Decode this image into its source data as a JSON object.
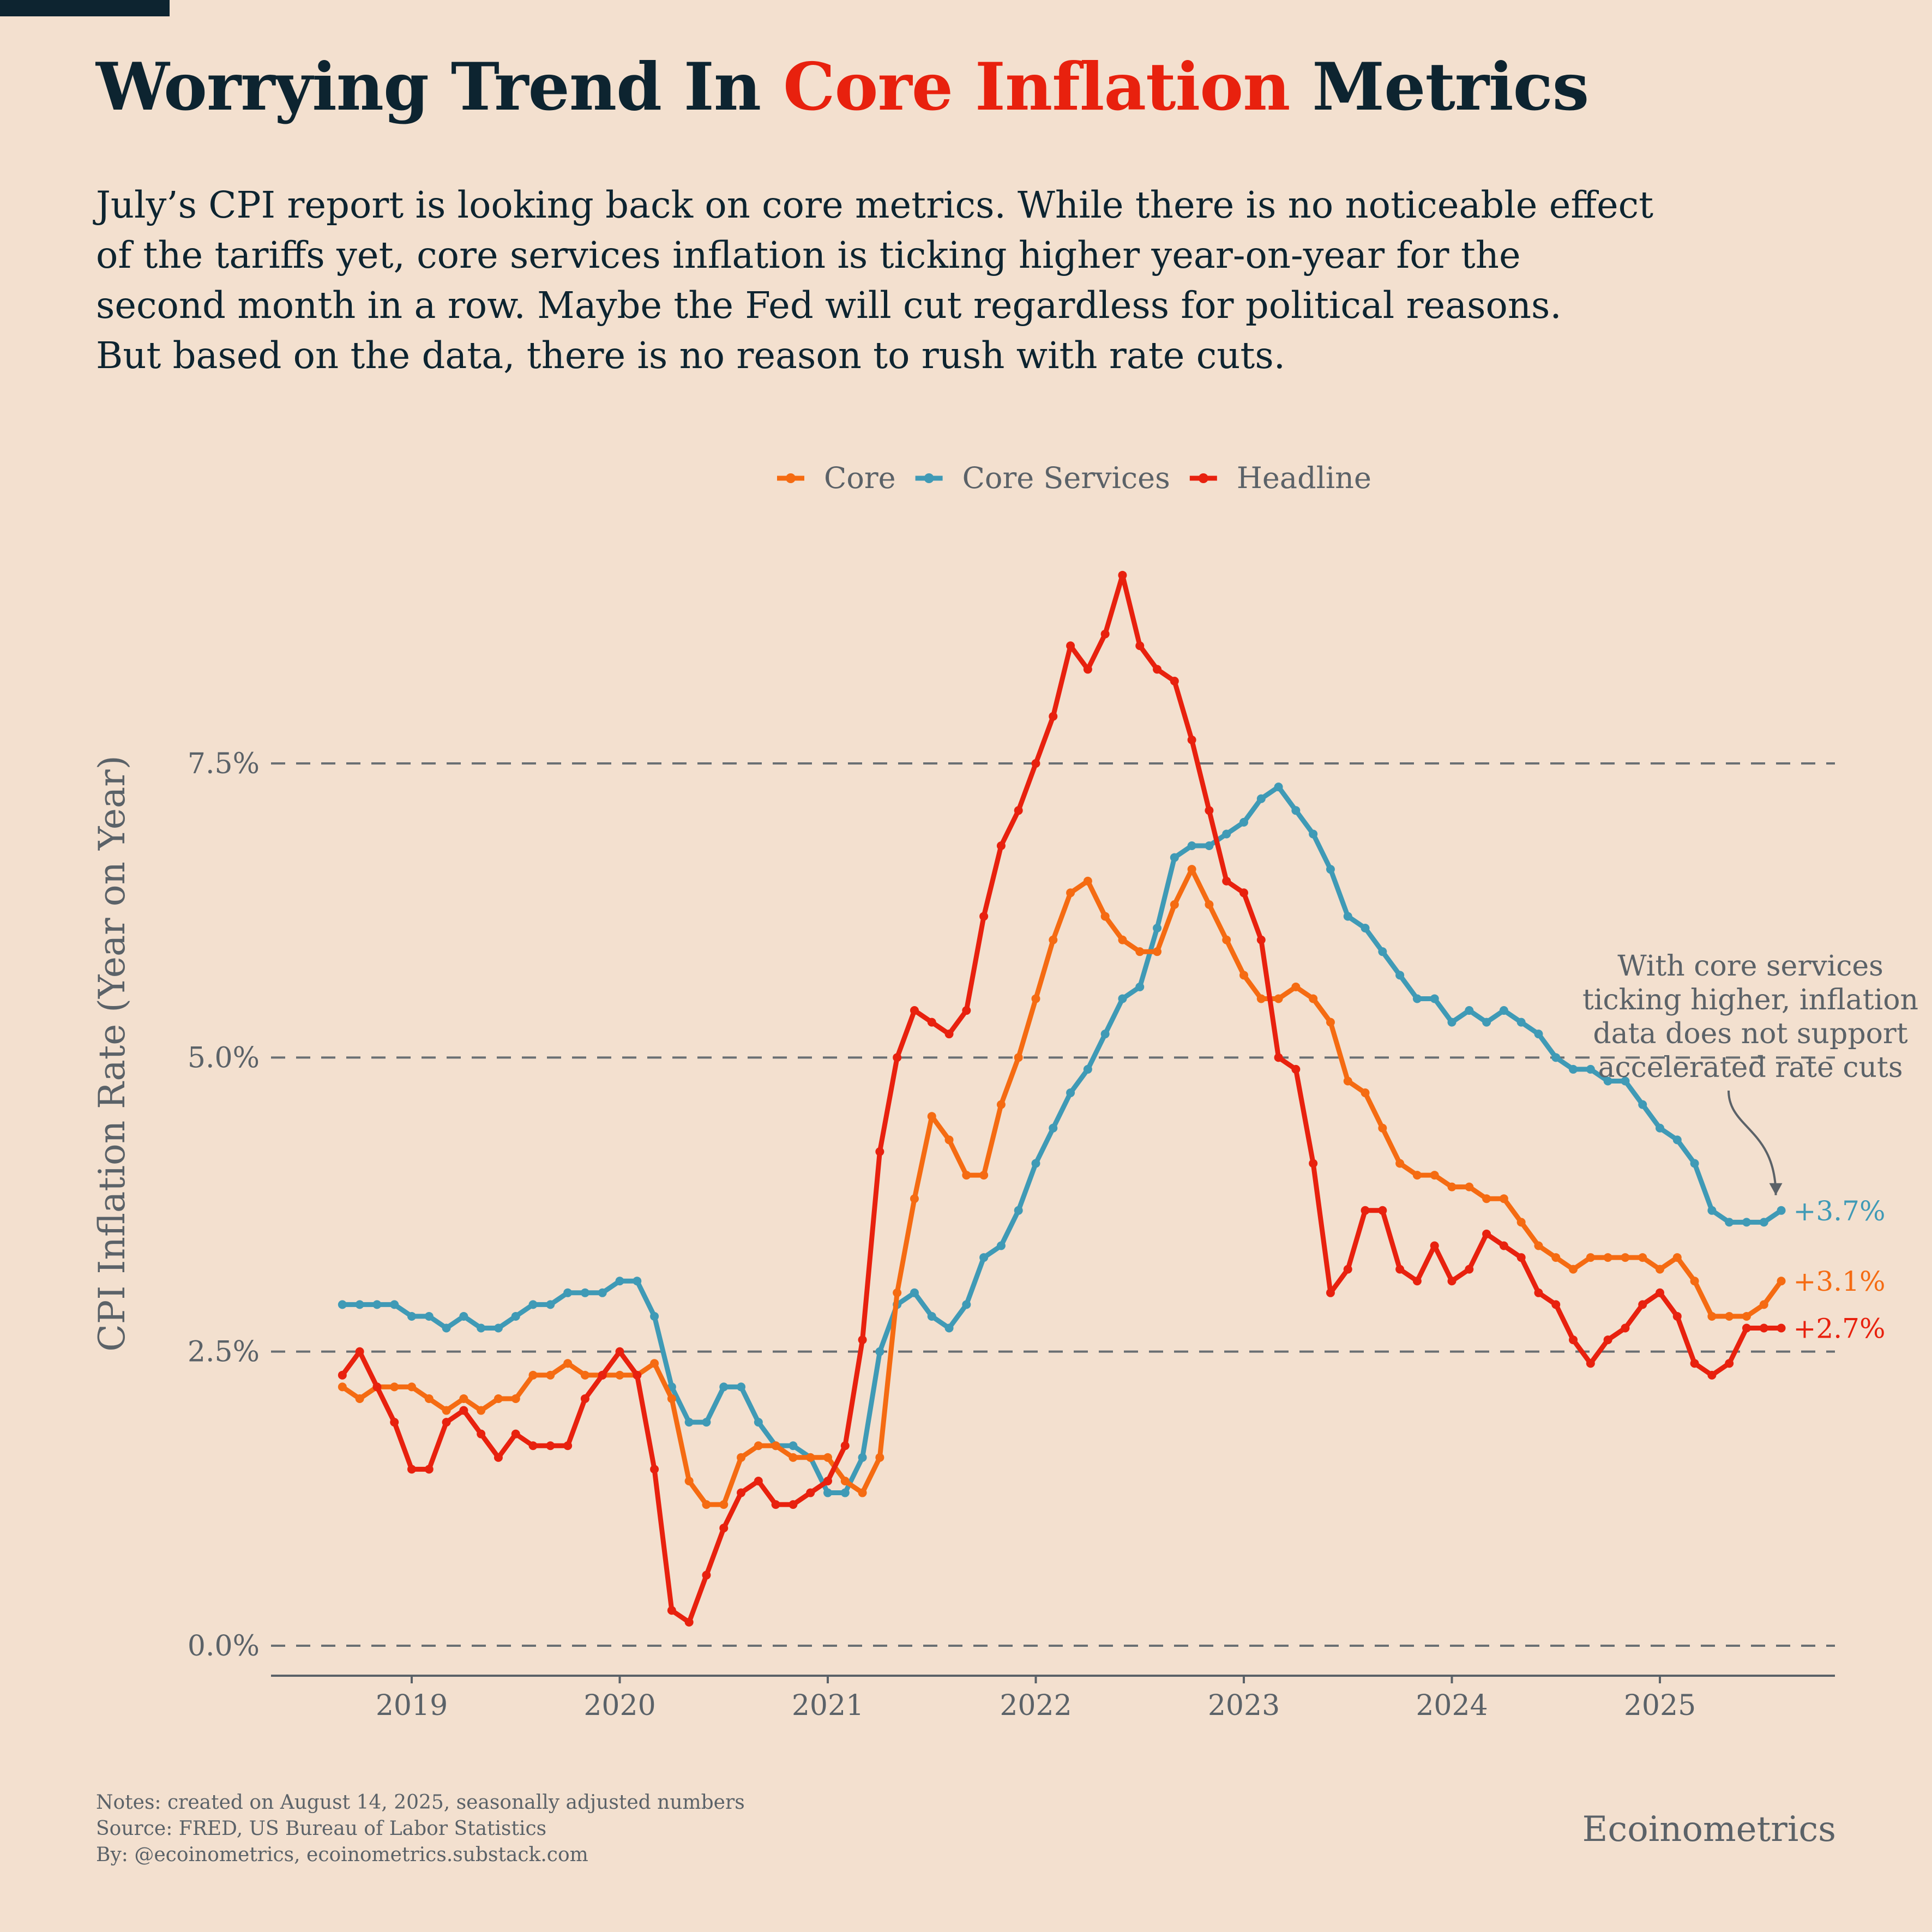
{
  "header": {
    "title_pre": "Worrying Trend In ",
    "title_highlight": "Core Inflation",
    "title_post": " Metrics",
    "title_highlight_color": "#e8210e",
    "subtitle_lines": [
      "July’s CPI report is looking back on core metrics. While there is no noticeable effect",
      "of the tariffs yet, core services inflation is ticking higher year-on-year for the",
      "second month in a row. Maybe the Fed will cut regardless for political reasons.",
      "But based on the data, there is no reason to rush with rate cuts."
    ]
  },
  "footer": {
    "notes": [
      "Notes: created on August 14, 2025, seasonally adjusted numbers",
      "Source: FRED, US Bureau of Labor Statistics",
      "By: @ecoinometrics, ecoinometrics.substack.com"
    ],
    "brand": "Ecoinometrics"
  },
  "chart_data": {
    "type": "line",
    "ylabel": "CPI Inflation Rate (Year on Year)",
    "xlabel": "",
    "ylim": [
      -0.25,
      9.5
    ],
    "yticks": [
      0,
      2.5,
      5,
      7.5
    ],
    "ytick_labels": [
      "0.0%",
      "2.5%",
      "5.0%",
      "7.5%"
    ],
    "xticks": [
      "2019",
      "2020",
      "2021",
      "2022",
      "2023",
      "2024",
      "2025"
    ],
    "grid": "horizontal dashed",
    "legend_position": "top-center",
    "x_start": "2018-09",
    "x_end": "2025-07",
    "series": [
      {
        "name": "Core",
        "color": "#f56b12",
        "end_label": "+3.1%",
        "values": [
          2.2,
          2.1,
          2.2,
          2.2,
          2.2,
          2.1,
          2.0,
          2.1,
          2.0,
          2.1,
          2.1,
          2.3,
          2.3,
          2.4,
          2.3,
          2.3,
          2.3,
          2.3,
          2.4,
          2.1,
          1.4,
          1.2,
          1.2,
          1.6,
          1.7,
          1.7,
          1.6,
          1.6,
          1.6,
          1.4,
          1.3,
          1.6,
          3.0,
          3.8,
          4.5,
          4.3,
          4.0,
          4.0,
          4.6,
          5.0,
          5.5,
          6.0,
          6.4,
          6.5,
          6.2,
          6.0,
          5.9,
          5.9,
          6.3,
          6.6,
          6.3,
          6.0,
          5.7,
          5.5,
          5.5,
          5.6,
          5.5,
          5.3,
          4.8,
          4.7,
          4.4,
          4.1,
          4.0,
          4.0,
          3.9,
          3.9,
          3.8,
          3.8,
          3.6,
          3.4,
          3.3,
          3.2,
          3.3,
          3.3,
          3.3,
          3.3,
          3.2,
          3.3,
          3.1,
          2.8,
          2.8,
          2.8,
          2.9,
          3.1
        ]
      },
      {
        "name": "Core Services",
        "color": "#3f9ab6",
        "end_label": "+3.7%",
        "values": [
          2.9,
          2.9,
          2.9,
          2.9,
          2.8,
          2.8,
          2.7,
          2.8,
          2.7,
          2.7,
          2.8,
          2.9,
          2.9,
          3.0,
          3.0,
          3.0,
          3.1,
          3.1,
          2.8,
          2.2,
          1.9,
          1.9,
          2.2,
          2.2,
          1.9,
          1.7,
          1.7,
          1.6,
          1.3,
          1.3,
          1.6,
          2.5,
          2.9,
          3.0,
          2.8,
          2.7,
          2.9,
          3.3,
          3.4,
          3.7,
          4.1,
          4.4,
          4.7,
          4.9,
          5.2,
          5.5,
          5.6,
          6.1,
          6.7,
          6.8,
          6.8,
          6.9,
          7.0,
          7.2,
          7.3,
          7.1,
          6.9,
          6.6,
          6.2,
          6.1,
          5.9,
          5.7,
          5.5,
          5.5,
          5.3,
          5.4,
          5.3,
          5.4,
          5.3,
          5.2,
          5.0,
          4.9,
          4.9,
          4.8,
          4.8,
          4.6,
          4.4,
          4.3,
          4.1,
          3.7,
          3.6,
          3.6,
          3.6,
          3.7
        ]
      },
      {
        "name": "Headline",
        "color": "#e8210e",
        "end_label": "+2.7%",
        "values": [
          2.3,
          2.5,
          2.2,
          1.9,
          1.5,
          1.5,
          1.9,
          2.0,
          1.8,
          1.6,
          1.8,
          1.7,
          1.7,
          1.7,
          2.1,
          2.3,
          2.5,
          2.3,
          1.5,
          0.3,
          0.2,
          0.6,
          1.0,
          1.3,
          1.4,
          1.2,
          1.2,
          1.3,
          1.4,
          1.7,
          2.6,
          4.2,
          5.0,
          5.4,
          5.3,
          5.2,
          5.4,
          6.2,
          6.8,
          7.1,
          7.5,
          7.9,
          8.5,
          8.3,
          8.6,
          9.1,
          8.5,
          8.3,
          8.2,
          7.7,
          7.1,
          6.5,
          6.4,
          6.0,
          5.0,
          4.9,
          4.1,
          3.0,
          3.2,
          3.7,
          3.7,
          3.2,
          3.1,
          3.4,
          3.1,
          3.2,
          3.5,
          3.4,
          3.3,
          3.0,
          2.9,
          2.6,
          2.4,
          2.6,
          2.7,
          2.9,
          3.0,
          2.8,
          2.4,
          2.3,
          2.4,
          2.7,
          2.7,
          2.7
        ]
      }
    ],
    "annotation": {
      "lines": [
        "With core services",
        "ticking higher, inflation",
        "data does not support",
        "accelerated rate cuts"
      ]
    }
  }
}
